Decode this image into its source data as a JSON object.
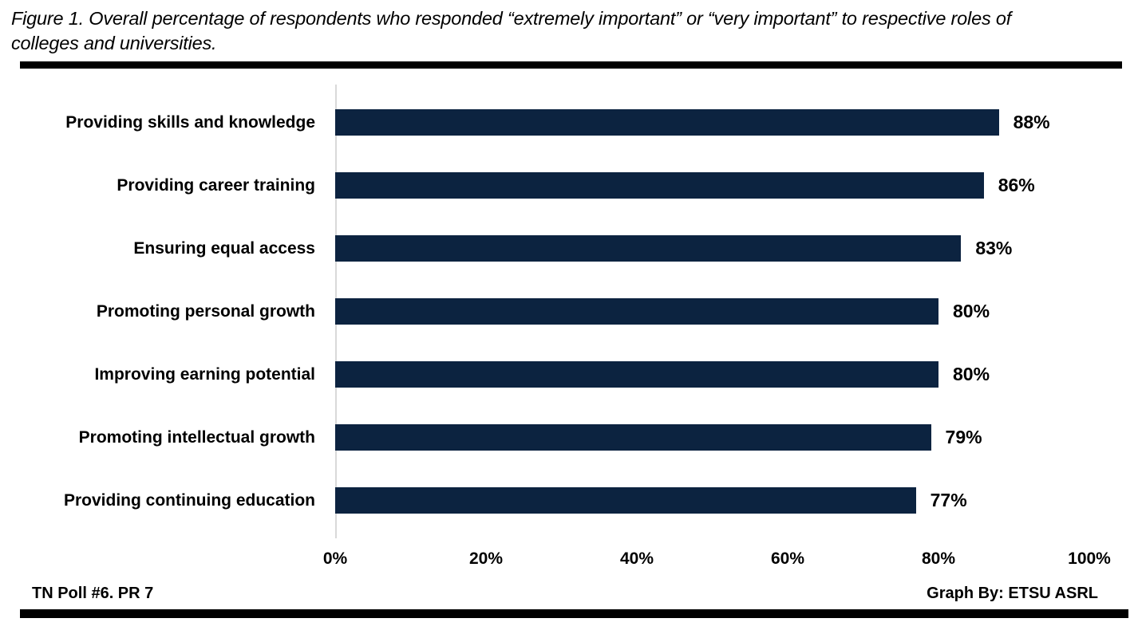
{
  "figure": {
    "title_lines": [
      "Figure 1. Overall percentage of respondents who responded “extremely important” or “very important” to respective roles of",
      "colleges and universities."
    ],
    "footer_left": "TN Poll #6. PR 7",
    "footer_right": "Graph By: ETSU ASRL"
  },
  "colors": {
    "bar": "#0c2340",
    "axis_line": "#d9d9d9",
    "rule": "#000000",
    "text": "#000000",
    "background": "#ffffff"
  },
  "chart_data": {
    "type": "bar",
    "orientation": "horizontal",
    "title": "Figure 1. Overall percentage of respondents who responded “extremely important” or “very important” to respective roles of colleges and universities.",
    "categories": [
      "Providing skills and knowledge",
      "Providing career training",
      "Ensuring equal access",
      "Promoting personal growth",
      "Improving earning potential",
      "Promoting intellectual growth",
      "Providing continuing education"
    ],
    "values": [
      88,
      86,
      83,
      80,
      80,
      79,
      77
    ],
    "value_labels": [
      "88%",
      "86%",
      "83%",
      "80%",
      "80%",
      "79%",
      "77%"
    ],
    "x_ticks": [
      "0%",
      "20%",
      "40%",
      "60%",
      "80%",
      "100%"
    ],
    "x_tick_values": [
      0,
      20,
      40,
      60,
      80,
      100
    ],
    "xlabel": "",
    "ylabel": "",
    "xlim": [
      0,
      100
    ],
    "grid": false,
    "legend": null,
    "bar_color": "#0c2340"
  }
}
